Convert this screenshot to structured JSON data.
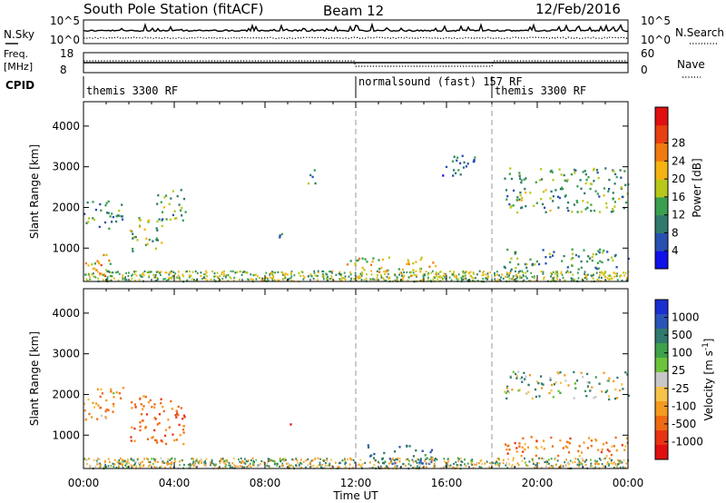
{
  "header": {
    "station": "South Pole Station (fitACF)",
    "beam": "Beam 12",
    "date": "12/Feb/2016"
  },
  "noise_panel": {
    "left_label": "N.Sky",
    "left_ticks": [
      "10^5",
      "10^0"
    ],
    "right_label": "N.Search",
    "right_ticks": [
      "10^5",
      "10^0"
    ]
  },
  "freq_panel": {
    "left_label_1": "Freq.",
    "left_label_2": "[MHz]",
    "left_ticks": [
      "18",
      "8"
    ],
    "right_label": "Nave",
    "right_ticks": [
      "60",
      "0"
    ]
  },
  "cpid": {
    "label": "CPID",
    "segments": [
      {
        "start_h": 0,
        "text": "themis 3300 RF"
      },
      {
        "start_h": 12,
        "text": "normalsound (fast) 157 RF"
      },
      {
        "start_h": 18,
        "text": "themis 3300 RF"
      }
    ]
  },
  "axes": {
    "xlabel": "Time UT",
    "x_ticks": [
      "00:00",
      "04:00",
      "08:00",
      "12:00",
      "16:00",
      "20:00",
      "00:00"
    ],
    "x_tick_hours": [
      0,
      4,
      8,
      12,
      16,
      20,
      24
    ],
    "xlim": [
      0,
      24
    ],
    "ylabel": "Slant Range [km]",
    "y_ticks": [
      "1000",
      "2000",
      "3000",
      "4000"
    ],
    "y_tick_values": [
      1000,
      2000,
      3000,
      4000
    ],
    "ylim": [
      180,
      4600
    ],
    "dashed_lines_hours": [
      12,
      18
    ]
  },
  "power_colorbar": {
    "label": "Power [dB]",
    "tick_labels": [
      "4",
      "8",
      "12",
      "16",
      "20",
      "24",
      "28"
    ],
    "colors": [
      "#1010e8",
      "#2850b0",
      "#2f7a6c",
      "#3aa050",
      "#b8c81a",
      "#f5b312",
      "#f07a10",
      "#e84010",
      "#e01010"
    ]
  },
  "velocity_colorbar": {
    "label": "Velocity [m s^-1]",
    "tick_labels": [
      "1000",
      "500",
      "100",
      "25",
      "-25",
      "-100",
      "-500",
      "-1000"
    ],
    "colors": [
      "#1a2fd0",
      "#2a55b8",
      "#2f7a6c",
      "#3fa14a",
      "#6cc43a",
      "#c8c8c8",
      "#f5c24a",
      "#f59a20",
      "#ee6a14",
      "#e83412",
      "#e01010"
    ]
  },
  "chart_data": {
    "type": "heatmap",
    "title": "South Pole Station (fitACF) Beam 12 12/Feb/2016",
    "xlabel": "Time UT",
    "ylabel": "Slant Range [km]",
    "xlim": [
      0,
      24
    ],
    "ylim": [
      180,
      4600
    ],
    "power_echo_regions": [
      {
        "t": [
          0.0,
          1.2
        ],
        "r": [
          200,
          900
        ],
        "level_db": 20
      },
      {
        "t": [
          0.0,
          1.8
        ],
        "r": [
          1500,
          2200
        ],
        "level_db": 10
      },
      {
        "t": [
          2.0,
          3.5
        ],
        "r": [
          900,
          1800
        ],
        "level_db": 14
      },
      {
        "t": [
          3.2,
          4.5
        ],
        "r": [
          1700,
          2500
        ],
        "level_db": 12
      },
      {
        "t": [
          8.6,
          9.1
        ],
        "r": [
          1100,
          1400
        ],
        "level_db": 10
      },
      {
        "t": [
          9.8,
          10.2
        ],
        "r": [
          2600,
          3100
        ],
        "level_db": 10
      },
      {
        "t": [
          11.5,
          15.5
        ],
        "r": [
          300,
          800
        ],
        "level_db": 18
      },
      {
        "t": [
          15.8,
          17.5
        ],
        "r": [
          2800,
          3300
        ],
        "level_db": 6
      },
      {
        "t": [
          18.5,
          24.0
        ],
        "r": [
          1900,
          3000
        ],
        "level_db": 12
      },
      {
        "t": [
          18.5,
          24.0
        ],
        "r": [
          500,
          1000
        ],
        "level_db": 10
      }
    ],
    "velocity_echo_regions": [
      {
        "t": [
          0.0,
          1.8
        ],
        "r": [
          1400,
          2200
        ],
        "v": -200
      },
      {
        "t": [
          2.0,
          4.5
        ],
        "r": [
          800,
          2000
        ],
        "v": -400
      },
      {
        "t": [
          8.8,
          9.1
        ],
        "r": [
          1200,
          1400
        ],
        "v": -900
      },
      {
        "t": [
          12.5,
          15.5
        ],
        "r": [
          300,
          800
        ],
        "v": 300
      },
      {
        "t": [
          18.5,
          24.0
        ],
        "r": [
          1900,
          2600
        ],
        "v": 0
      },
      {
        "t": [
          18.5,
          24.0
        ],
        "r": [
          500,
          1000
        ],
        "v": -300
      }
    ]
  }
}
